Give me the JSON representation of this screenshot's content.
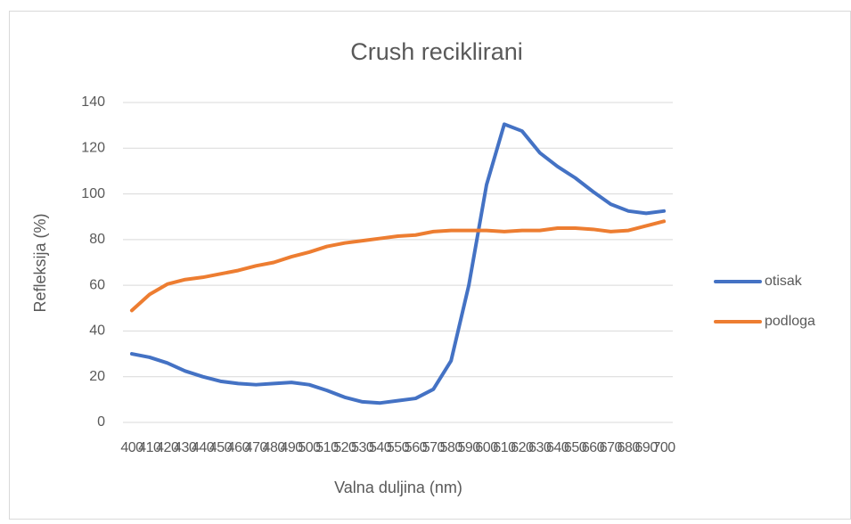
{
  "chart_data": {
    "type": "line",
    "title": "Crush reciklirani",
    "xlabel": "Valna duljina (nm)",
    "ylabel": "Refleksija (%)",
    "x": [
      400,
      410,
      420,
      430,
      440,
      450,
      460,
      470,
      480,
      490,
      500,
      510,
      520,
      530,
      540,
      550,
      560,
      570,
      580,
      590,
      600,
      610,
      620,
      630,
      640,
      650,
      660,
      670,
      680,
      690,
      700
    ],
    "series": [
      {
        "name": "otisak",
        "color": "#4472c4",
        "values": [
          30,
          28.5,
          26,
          22.5,
          20,
          18,
          17,
          16.5,
          17,
          17.5,
          16.5,
          14,
          11,
          9,
          8.5,
          9.5,
          10.5,
          14.5,
          27,
          60,
          104,
          130.5,
          127.5,
          118,
          112,
          107,
          101,
          95.5,
          92.5,
          91.5,
          92.5
        ]
      },
      {
        "name": "podloga",
        "color": "#ed7d31",
        "values": [
          49,
          56,
          60.5,
          62.5,
          63.5,
          65,
          66.5,
          68.5,
          70,
          72.5,
          74.5,
          77,
          78.5,
          79.5,
          80.5,
          81.5,
          82,
          83.5,
          84,
          84,
          84,
          83.5,
          84,
          84,
          85,
          85,
          84.5,
          83.5,
          84,
          86,
          88
        ]
      }
    ],
    "ylim": [
      0,
      140
    ],
    "yticks": [
      0,
      20,
      40,
      60,
      80,
      100,
      120,
      140
    ],
    "grid": true,
    "legend": "right"
  }
}
